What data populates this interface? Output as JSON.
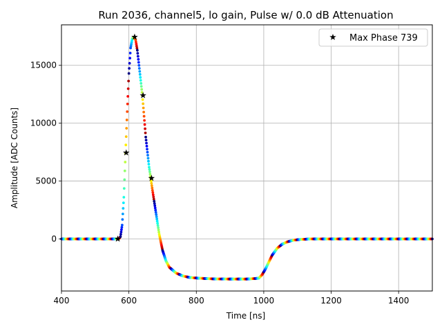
{
  "chart_data": {
    "type": "scatter",
    "title": "Run 2036, channel5, lo gain, Pulse w/ 0.0 dB Attenuation",
    "xlabel": "Time [ns]",
    "ylabel": "Amplitude [ADC Counts]",
    "xlim": [
      400,
      1500
    ],
    "ylim": [
      -4500,
      18500
    ],
    "xticks": [
      400,
      600,
      800,
      1000,
      1200,
      1400
    ],
    "yticks": [
      0,
      5000,
      10000,
      15000
    ],
    "grid": true,
    "legend": {
      "position": "top-right",
      "label": "Max Phase 739",
      "marker": "star"
    },
    "colormap": "jet",
    "pulse_curve": {
      "x": [
        400,
        560,
        570,
        575,
        580,
        585,
        590,
        595,
        600,
        605,
        610,
        615,
        620,
        625,
        630,
        640,
        650,
        660,
        670,
        680,
        690,
        700,
        710,
        720,
        740,
        760,
        780,
        800,
        830,
        860,
        900,
        950,
        985,
        995,
        1005,
        1015,
        1025,
        1040,
        1055,
        1070,
        1090,
        1110,
        1140,
        1200,
        1300,
        1400,
        1500
      ],
      "y": [
        0,
        0,
        0,
        200,
        1200,
        3600,
        7400,
        11000,
        14300,
        16500,
        17300,
        17450,
        17200,
        16300,
        15000,
        12400,
        8800,
        6200,
        4200,
        2300,
        400,
        -1000,
        -1900,
        -2450,
        -2950,
        -3200,
        -3330,
        -3380,
        -3430,
        -3460,
        -3470,
        -3470,
        -3400,
        -3100,
        -2600,
        -2000,
        -1400,
        -800,
        -450,
        -250,
        -100,
        -40,
        0,
        0,
        0,
        0,
        0
      ]
    },
    "series": [
      {
        "name": "Max Phase 739",
        "marker": "star",
        "x": [
          567,
          592,
          617,
          642,
          667
        ],
        "y": [
          0,
          7450,
          17450,
          12400,
          5250
        ]
      }
    ]
  }
}
